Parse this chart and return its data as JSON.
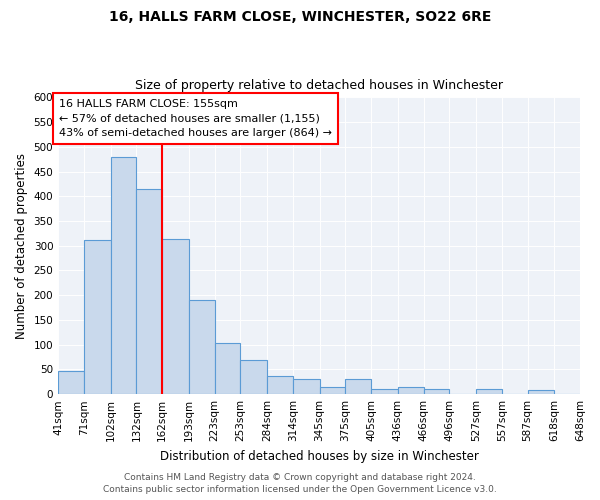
{
  "title": "16, HALLS FARM CLOSE, WINCHESTER, SO22 6RE",
  "subtitle": "Size of property relative to detached houses in Winchester",
  "xlabel": "Distribution of detached houses by size in Winchester",
  "ylabel": "Number of detached properties",
  "bar_edges": [
    41,
    71,
    102,
    132,
    162,
    193,
    223,
    253,
    284,
    314,
    345,
    375,
    405,
    436,
    466,
    496,
    527,
    557,
    587,
    618,
    648
  ],
  "bar_heights": [
    46,
    311,
    480,
    415,
    314,
    191,
    104,
    69,
    37,
    30,
    14,
    30,
    10,
    14,
    10,
    0,
    10,
    0,
    8,
    0
  ],
  "bar_color": "#c9d9ec",
  "bar_edge_color": "#5b9bd5",
  "vline_x": 162,
  "vline_color": "red",
  "ylim": [
    0,
    600
  ],
  "yticks": [
    0,
    50,
    100,
    150,
    200,
    250,
    300,
    350,
    400,
    450,
    500,
    550,
    600
  ],
  "tick_labels": [
    "41sqm",
    "71sqm",
    "102sqm",
    "132sqm",
    "162sqm",
    "193sqm",
    "223sqm",
    "253sqm",
    "284sqm",
    "314sqm",
    "345sqm",
    "375sqm",
    "405sqm",
    "436sqm",
    "466sqm",
    "496sqm",
    "527sqm",
    "557sqm",
    "587sqm",
    "618sqm",
    "648sqm"
  ],
  "annotation_line1": "16 HALLS FARM CLOSE: 155sqm",
  "annotation_line2": "← 57% of detached houses are smaller (1,155)",
  "annotation_line3": "43% of semi-detached houses are larger (864) →",
  "annotation_box_color": "white",
  "annotation_box_edge": "red",
  "footer1": "Contains HM Land Registry data © Crown copyright and database right 2024.",
  "footer2": "Contains public sector information licensed under the Open Government Licence v3.0.",
  "bg_color": "#eef2f8",
  "grid_color": "white",
  "title_fontsize": 10,
  "subtitle_fontsize": 9,
  "axis_label_fontsize": 8.5,
  "tick_fontsize": 7.5,
  "annotation_fontsize": 8,
  "footer_fontsize": 6.5
}
